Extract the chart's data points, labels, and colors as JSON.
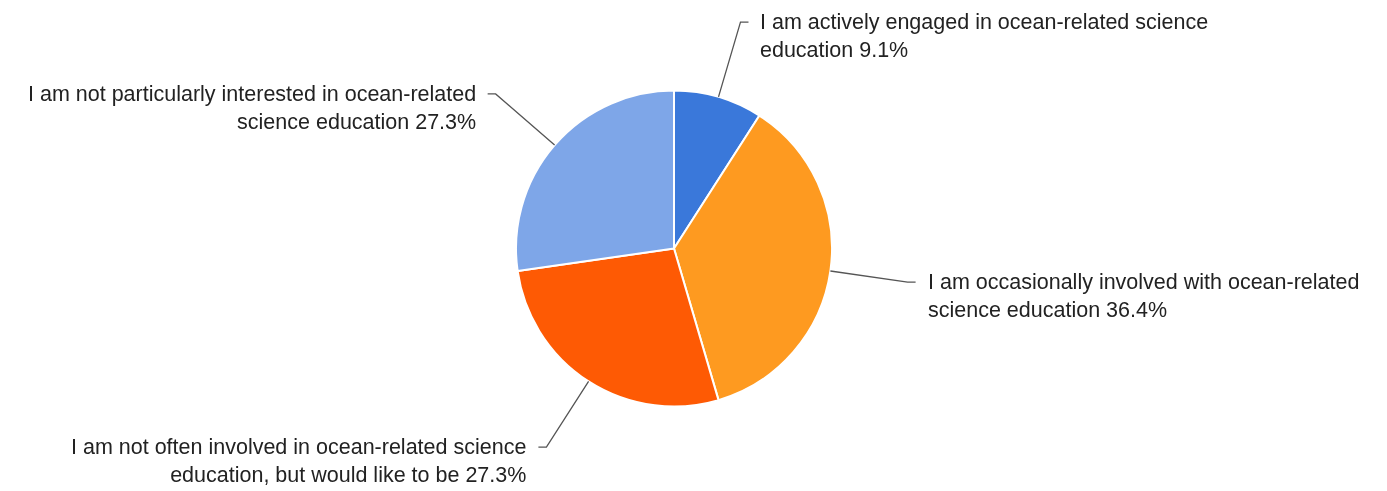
{
  "chart_data": {
    "type": "pie",
    "categories": [
      "I am actively engaged in ocean-related science education",
      "I am occasionally involved with ocean-related science education",
      "I am not often involved in ocean-related science education, but would like to be",
      "I am not particularly interested in ocean-related science education"
    ],
    "values": [
      9.1,
      36.4,
      27.3,
      27.3
    ],
    "value_labels": [
      "9.1%",
      "36.4%",
      "27.3%",
      "27.3%"
    ],
    "colors": [
      "#3a78da",
      "#fe9a20",
      "#fe5a04",
      "#7ea6e8"
    ],
    "legend": false
  }
}
